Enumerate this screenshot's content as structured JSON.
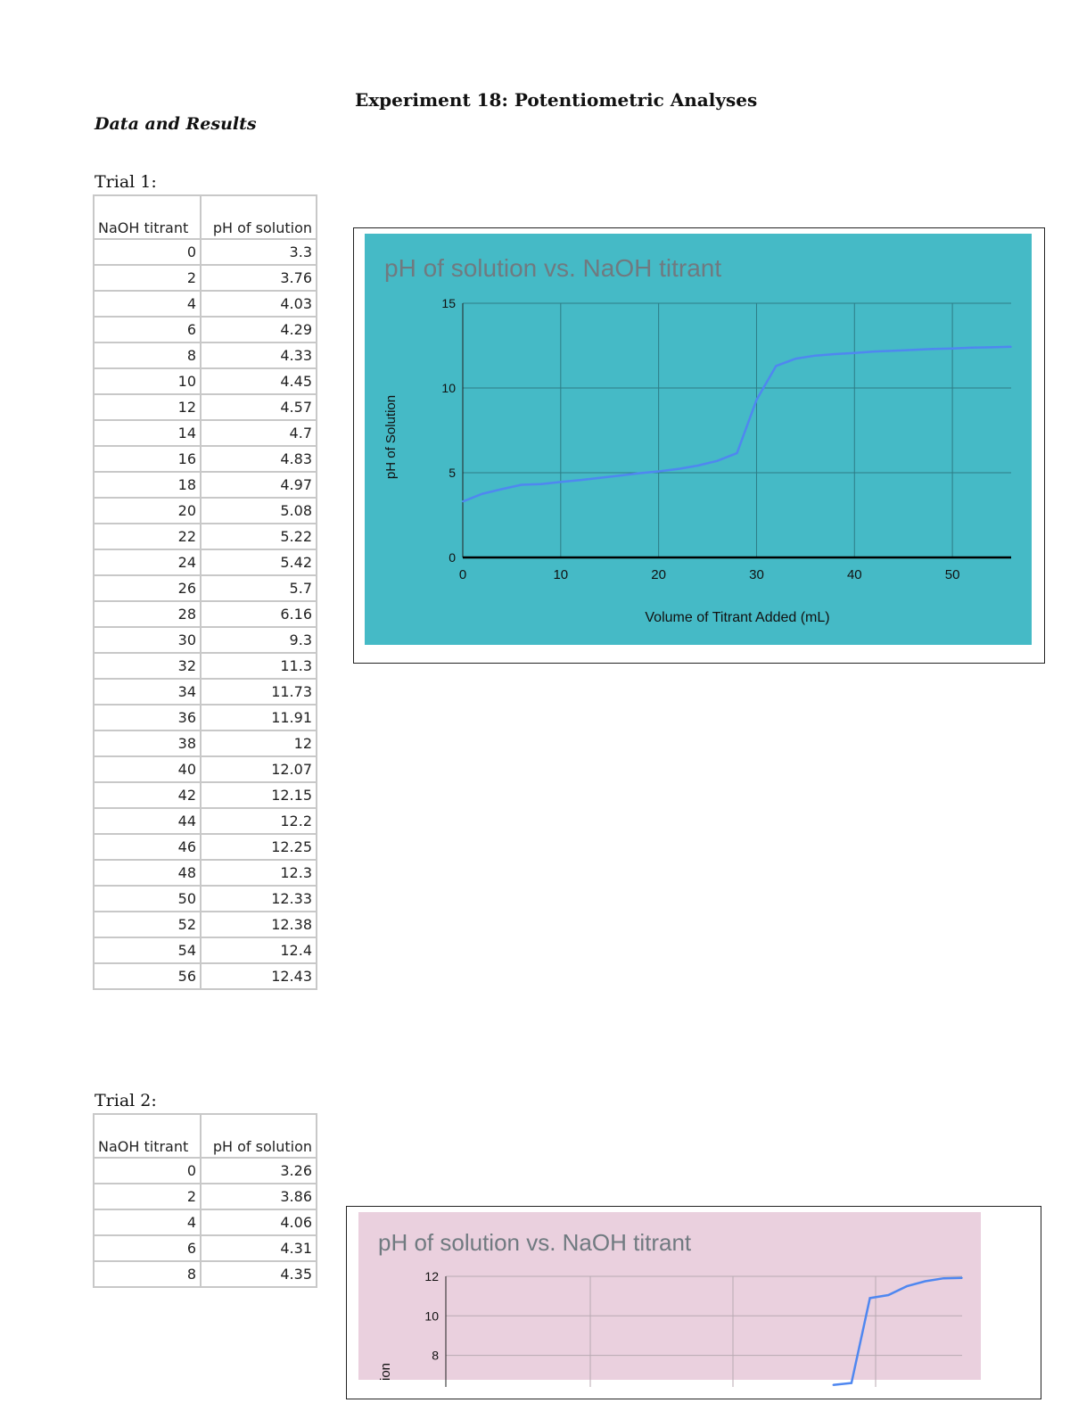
{
  "document": {
    "title": "Experiment 18: Potentiometric Analyses",
    "section_heading": "Data and Results"
  },
  "trial1": {
    "label": "Trial 1:",
    "headers": [
      "NaOH titrant",
      "pH of solution"
    ],
    "rows": [
      [
        "0",
        "3.3"
      ],
      [
        "2",
        "3.76"
      ],
      [
        "4",
        "4.03"
      ],
      [
        "6",
        "4.29"
      ],
      [
        "8",
        "4.33"
      ],
      [
        "10",
        "4.45"
      ],
      [
        "12",
        "4.57"
      ],
      [
        "14",
        "4.7"
      ],
      [
        "16",
        "4.83"
      ],
      [
        "18",
        "4.97"
      ],
      [
        "20",
        "5.08"
      ],
      [
        "22",
        "5.22"
      ],
      [
        "24",
        "5.42"
      ],
      [
        "26",
        "5.7"
      ],
      [
        "28",
        "6.16"
      ],
      [
        "30",
        "9.3"
      ],
      [
        "32",
        "11.3"
      ],
      [
        "34",
        "11.73"
      ],
      [
        "36",
        "11.91"
      ],
      [
        "38",
        "12"
      ],
      [
        "40",
        "12.07"
      ],
      [
        "42",
        "12.15"
      ],
      [
        "44",
        "12.2"
      ],
      [
        "46",
        "12.25"
      ],
      [
        "48",
        "12.3"
      ],
      [
        "50",
        "12.33"
      ],
      [
        "52",
        "12.38"
      ],
      [
        "54",
        "12.4"
      ],
      [
        "56",
        "12.43"
      ]
    ]
  },
  "trial2": {
    "label": "Trial 2:",
    "headers": [
      "NaOH titrant",
      "pH of solution"
    ],
    "rows": [
      [
        "0",
        "3.26"
      ],
      [
        "2",
        "3.86"
      ],
      [
        "4",
        "4.06"
      ],
      [
        "6",
        "4.31"
      ],
      [
        "8",
        "4.35"
      ]
    ]
  },
  "chart_data": [
    {
      "type": "line",
      "title": "pH of solution vs. NaOH titrant",
      "xlabel": "Volume of Titrant Added (mL)",
      "ylabel": "pH of Solution",
      "xlim": [
        0,
        56
      ],
      "ylim": [
        0,
        15
      ],
      "xticks": [
        0,
        10,
        20,
        30,
        40,
        50
      ],
      "yticks": [
        0,
        5,
        10,
        15
      ],
      "grid": true,
      "legend": "none",
      "background_color": "#45bac6",
      "line_color": "#4f87f0",
      "series": [
        {
          "x": [
            0,
            2,
            4,
            6,
            8,
            10,
            12,
            14,
            16,
            18,
            20,
            22,
            24,
            26,
            28,
            30,
            32,
            34,
            36,
            38,
            40,
            42,
            44,
            46,
            48,
            50,
            52,
            54,
            56
          ],
          "y": [
            3.3,
            3.76,
            4.03,
            4.29,
            4.33,
            4.45,
            4.57,
            4.7,
            4.83,
            4.97,
            5.08,
            5.22,
            5.42,
            5.7,
            6.16,
            9.3,
            11.3,
            11.73,
            11.91,
            12,
            12.07,
            12.15,
            12.2,
            12.25,
            12.3,
            12.33,
            12.38,
            12.4,
            12.43
          ]
        }
      ]
    },
    {
      "type": "line",
      "title": "pH of solution vs. NaOH titrant",
      "ylabel": "pH of Solution",
      "ylabel_visible": "ion",
      "xlim": [
        0,
        56
      ],
      "ylim": [
        6.4,
        12
      ],
      "yticks": [
        8,
        10,
        12
      ],
      "grid": true,
      "legend": "none",
      "background_color": "#ead0de",
      "line_color": "#4f87f0",
      "series": [
        {
          "x": [
            42,
            44,
            46,
            48,
            50,
            52,
            54,
            56
          ],
          "y": [
            6.5,
            6.6,
            10.9,
            11.05,
            11.5,
            11.75,
            11.9,
            11.92
          ]
        }
      ]
    }
  ]
}
